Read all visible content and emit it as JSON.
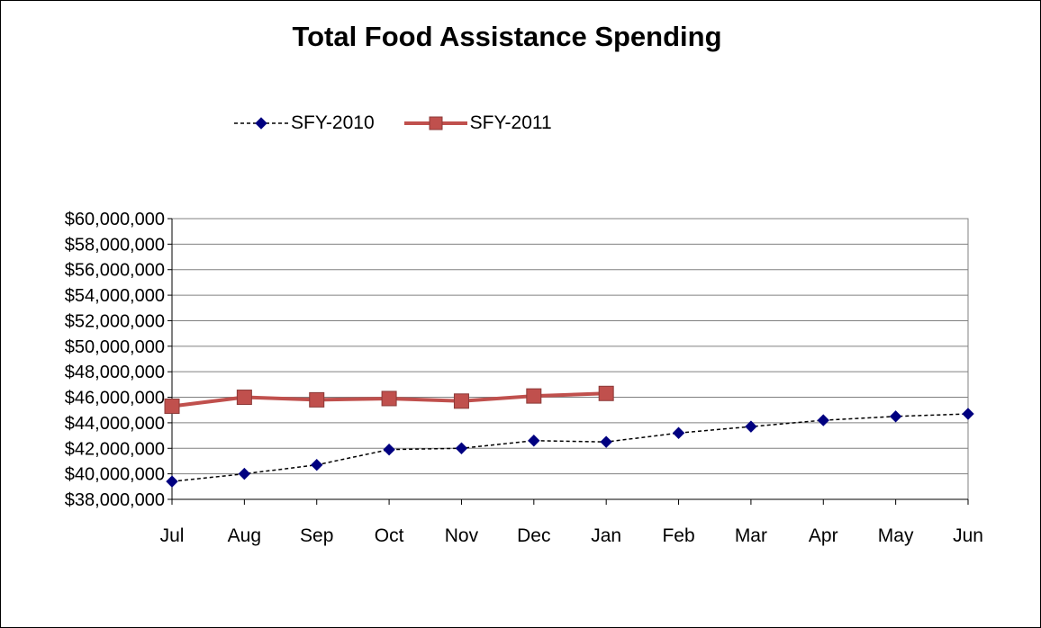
{
  "chart_data": {
    "type": "line",
    "title": "Total Food Assistance Spending",
    "xlabel": "",
    "ylabel": "",
    "categories": [
      "Jul",
      "Aug",
      "Sep",
      "Oct",
      "Nov",
      "Dec",
      "Jan",
      "Feb",
      "Mar",
      "Apr",
      "May",
      "Jun"
    ],
    "ylim": [
      38000000,
      60000000
    ],
    "y_ticks": [
      38000000,
      40000000,
      42000000,
      44000000,
      46000000,
      48000000,
      50000000,
      52000000,
      54000000,
      56000000,
      58000000,
      60000000
    ],
    "y_tick_labels": [
      "$38,000,000",
      "$40,000,000",
      "$42,000,000",
      "$44,000,000",
      "$46,000,000",
      "$48,000,000",
      "$50,000,000",
      "$52,000,000",
      "$54,000,000",
      "$56,000,000",
      "$58,000,000",
      "$60,000,000"
    ],
    "grid": true,
    "legend_position": "top-left",
    "series": [
      {
        "name": "SFY-2010",
        "color": "#000080",
        "line_style": "dashed-black",
        "marker": "diamond",
        "values": [
          39400000,
          40000000,
          40700000,
          41900000,
          42000000,
          42600000,
          42500000,
          43200000,
          43700000,
          44200000,
          44500000,
          44700000
        ]
      },
      {
        "name": "SFY-2011",
        "color": "#C0504D",
        "line_style": "solid",
        "marker": "square",
        "values": [
          45300000,
          46000000,
          45800000,
          45900000,
          45700000,
          46100000,
          46300000,
          null,
          null,
          null,
          null,
          null
        ]
      }
    ]
  }
}
